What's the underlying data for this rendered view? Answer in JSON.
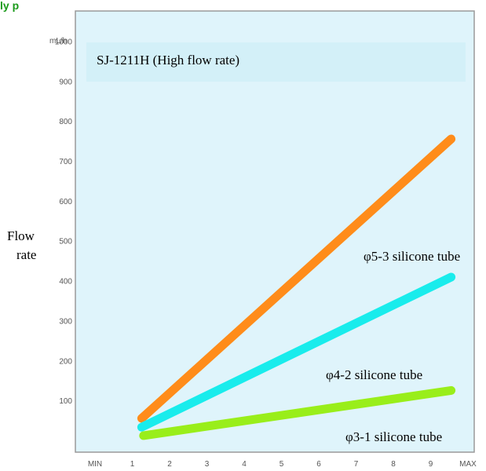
{
  "header": {
    "visible_text": "ly p"
  },
  "chart_data": {
    "type": "line",
    "title": "SJ-1211H (High flow rate)",
    "ylabel_line1": "Flow",
    "ylabel_line2": "rate",
    "yunit": "mL/h",
    "x_ticks": [
      "MIN",
      "1",
      "2",
      "3",
      "4",
      "5",
      "6",
      "7",
      "8",
      "9",
      "MAX"
    ],
    "x_tick_values": [
      0,
      1,
      2,
      3,
      4,
      5,
      6,
      7,
      8,
      9,
      10
    ],
    "y_ticks": [
      100,
      200,
      300,
      400,
      500,
      600,
      700,
      800,
      900,
      1000
    ],
    "xlim": [
      0,
      10
    ],
    "ylim": [
      0,
      1050
    ],
    "series": [
      {
        "name": "φ5-3 silicone tube",
        "color": "#ff8c1a",
        "x": [
          1.25,
          9.55
        ],
        "y": [
          55,
          755
        ]
      },
      {
        "name": "φ4-2 silicone tube",
        "color": "#19ecec",
        "x": [
          1.25,
          9.55
        ],
        "y": [
          33,
          409
        ]
      },
      {
        "name": "φ3-1 silicone tube",
        "color": "#99ee1a",
        "x": [
          1.3,
          9.55
        ],
        "y": [
          12,
          125
        ]
      }
    ],
    "plot_bg": "#dff4fb",
    "grid": false
  }
}
